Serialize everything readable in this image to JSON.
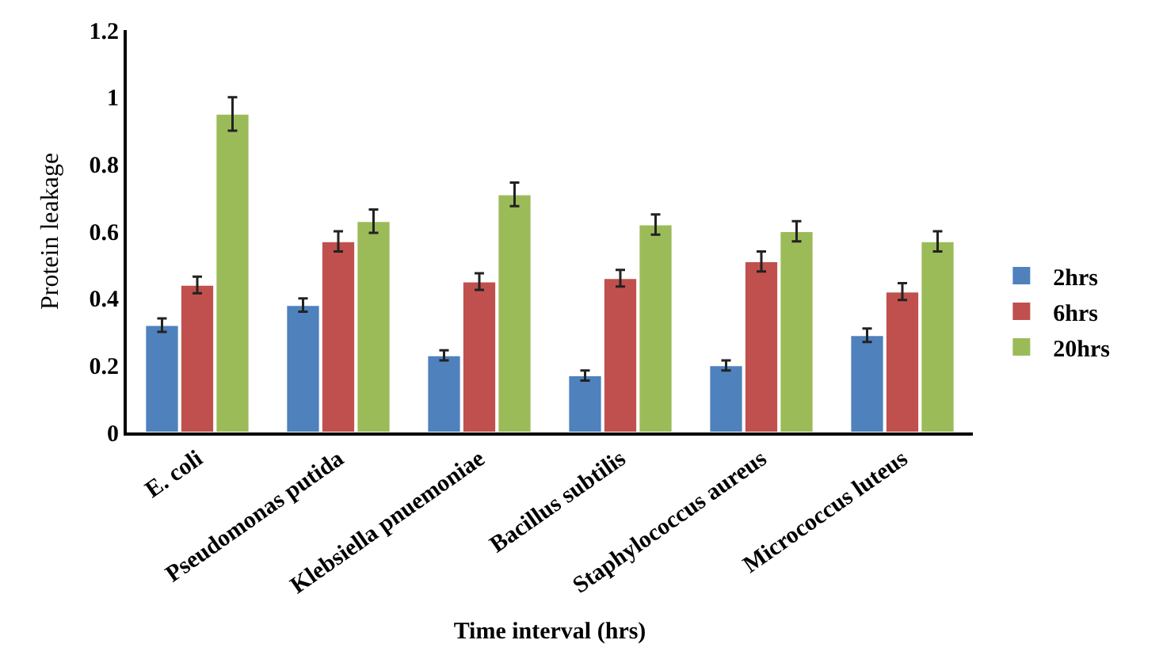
{
  "chart_data": {
    "type": "bar",
    "xlabel": "Time interval (hrs)",
    "ylabel": "Protein leakage",
    "categories": [
      "E. coli",
      "Pseudomonas putida",
      "Klebsiella pnuemoniae",
      "Bacillus subtilis",
      "Staphylococcus aureus",
      "Micrococcus luteus"
    ],
    "series": [
      {
        "name": "2hrs",
        "color": "#4f81bd",
        "values": [
          0.32,
          0.38,
          0.23,
          0.17,
          0.2,
          0.29
        ],
        "errors": [
          0.02,
          0.02,
          0.015,
          0.015,
          0.015,
          0.02
        ]
      },
      {
        "name": "6hrs",
        "color": "#c0504d",
        "values": [
          0.44,
          0.57,
          0.45,
          0.46,
          0.51,
          0.42
        ],
        "errors": [
          0.025,
          0.03,
          0.025,
          0.025,
          0.03,
          0.025
        ]
      },
      {
        "name": "20hrs",
        "color": "#9bbb59",
        "values": [
          0.95,
          0.63,
          0.71,
          0.62,
          0.6,
          0.57
        ],
        "errors": [
          0.05,
          0.035,
          0.035,
          0.03,
          0.03,
          0.03
        ]
      }
    ],
    "ylim": [
      0,
      1.2
    ],
    "yticks": [
      0,
      0.2,
      0.4,
      0.6,
      0.8,
      1,
      1.2
    ],
    "legend": "right"
  }
}
